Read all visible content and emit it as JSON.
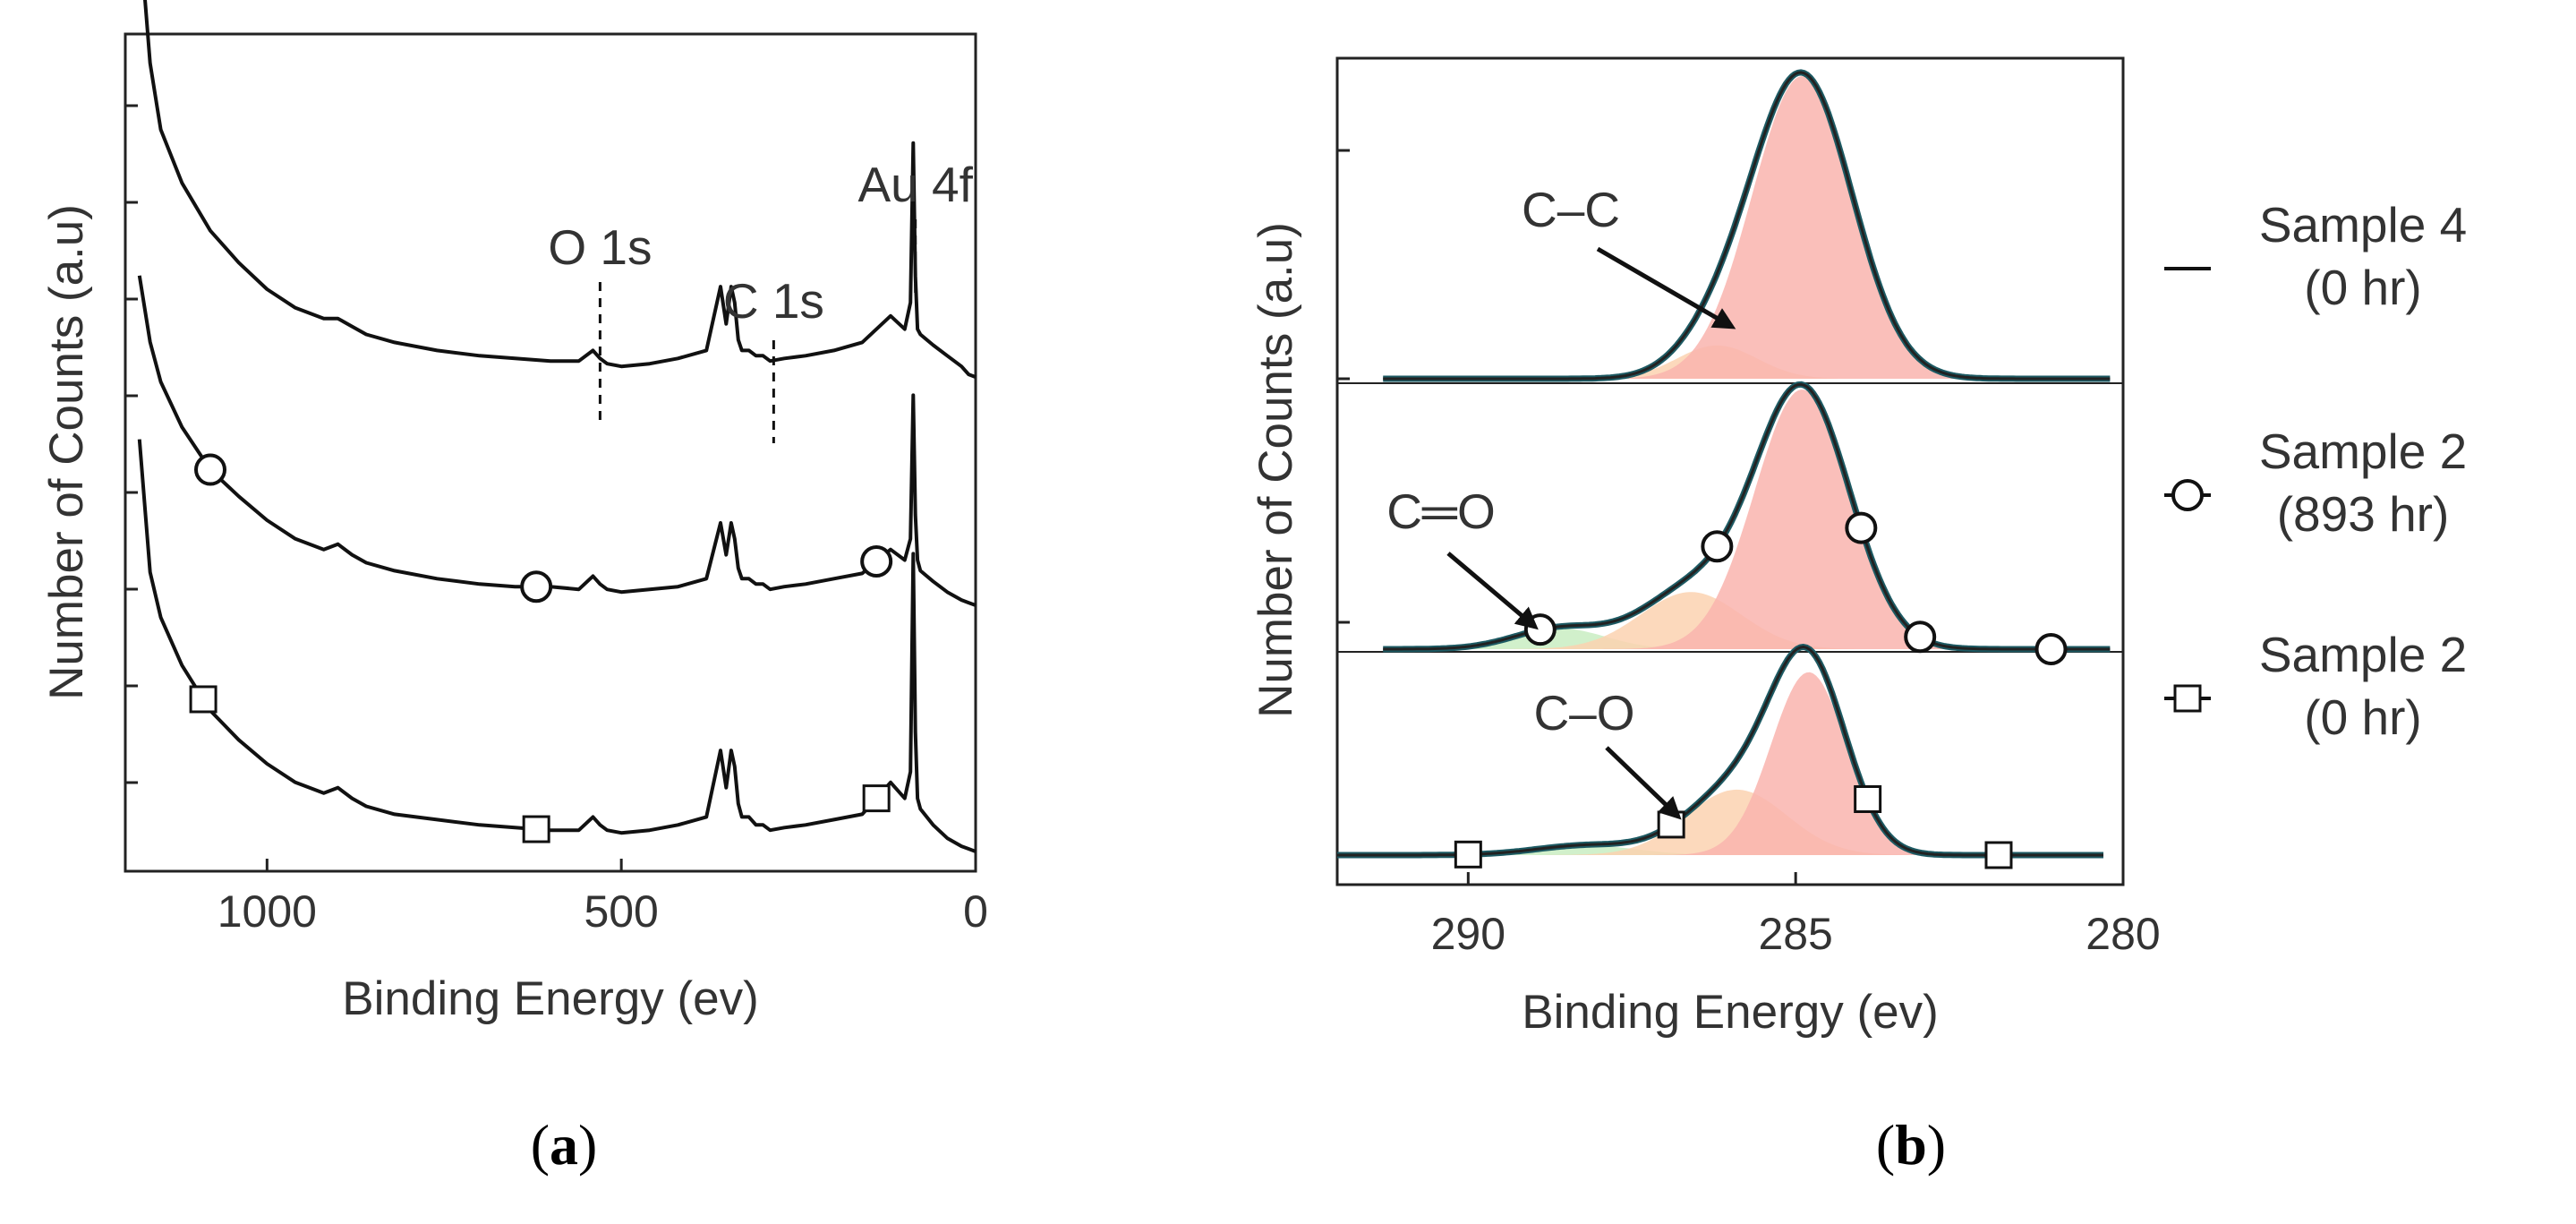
{
  "chart_data": [
    {
      "id": "a",
      "type": "line",
      "panel_label": "a",
      "xlabel": "Binding Energy (ev)",
      "ylabel": "Number of Counts (a.u)",
      "xlim": [
        1200,
        0
      ],
      "xticks": [
        {
          "value": 1000,
          "label": "1000"
        },
        {
          "value": 500,
          "label": "500"
        },
        {
          "value": 0,
          "label": "0"
        }
      ],
      "yticks": 8,
      "series": [
        {
          "name": "Sample 4 (0 hr)",
          "marker": "none",
          "offset": 2.0,
          "x": [
            1180,
            1165,
            1150,
            1120,
            1080,
            1040,
            1000,
            960,
            920,
            900,
            880,
            860,
            820,
            760,
            700,
            650,
            600,
            560,
            540,
            530,
            520,
            500,
            460,
            420,
            380,
            360,
            352,
            345,
            340,
            335,
            330,
            320,
            310,
            300,
            290,
            270,
            240,
            200,
            160,
            120,
            100,
            92,
            88,
            85,
            82,
            78,
            60,
            40,
            20,
            10,
            0
          ],
          "y": [
            1.7,
            1.2,
            0.95,
            0.75,
            0.57,
            0.45,
            0.35,
            0.28,
            0.24,
            0.24,
            0.21,
            0.18,
            0.15,
            0.12,
            0.1,
            0.09,
            0.08,
            0.08,
            0.12,
            0.09,
            0.07,
            0.06,
            0.07,
            0.09,
            0.12,
            0.36,
            0.22,
            0.36,
            0.3,
            0.16,
            0.12,
            0.12,
            0.1,
            0.1,
            0.08,
            0.09,
            0.1,
            0.12,
            0.15,
            0.25,
            0.2,
            0.3,
            0.9,
            0.4,
            0.2,
            0.18,
            0.14,
            0.1,
            0.06,
            0.03,
            0.02
          ]
        },
        {
          "name": "Sample 2 (893 hr)",
          "marker": "circle",
          "offset": 1.0,
          "x": [
            1180,
            1165,
            1150,
            1120,
            1080,
            1040,
            1000,
            960,
            920,
            900,
            880,
            860,
            820,
            760,
            700,
            650,
            600,
            560,
            540,
            530,
            520,
            500,
            460,
            420,
            380,
            360,
            352,
            345,
            340,
            335,
            330,
            320,
            310,
            300,
            290,
            270,
            240,
            200,
            160,
            120,
            100,
            92,
            88,
            85,
            82,
            78,
            60,
            40,
            20,
            10,
            0
          ],
          "y": [
            1.25,
            1.0,
            0.85,
            0.68,
            0.52,
            0.42,
            0.33,
            0.26,
            0.22,
            0.24,
            0.2,
            0.17,
            0.14,
            0.11,
            0.09,
            0.08,
            0.08,
            0.07,
            0.12,
            0.09,
            0.07,
            0.06,
            0.07,
            0.08,
            0.11,
            0.32,
            0.2,
            0.32,
            0.26,
            0.15,
            0.11,
            0.11,
            0.09,
            0.09,
            0.07,
            0.08,
            0.09,
            0.11,
            0.13,
            0.22,
            0.18,
            0.26,
            0.8,
            0.35,
            0.18,
            0.14,
            0.1,
            0.06,
            0.03,
            0.02,
            0.01
          ],
          "markers_x": [
            1080,
            620,
            140
          ]
        },
        {
          "name": "Sample 2 (0 hr)",
          "marker": "square",
          "offset": 0.0,
          "x": [
            1180,
            1165,
            1150,
            1120,
            1080,
            1040,
            1000,
            960,
            920,
            900,
            880,
            860,
            820,
            760,
            700,
            650,
            600,
            560,
            540,
            530,
            520,
            500,
            460,
            420,
            380,
            360,
            352,
            345,
            340,
            335,
            330,
            320,
            310,
            300,
            290,
            270,
            240,
            200,
            160,
            120,
            100,
            92,
            88,
            85,
            82,
            78,
            60,
            40,
            20,
            10,
            0
          ],
          "y": [
            1.55,
            1.05,
            0.88,
            0.7,
            0.53,
            0.42,
            0.33,
            0.26,
            0.22,
            0.24,
            0.2,
            0.17,
            0.14,
            0.12,
            0.1,
            0.09,
            0.08,
            0.08,
            0.13,
            0.1,
            0.08,
            0.07,
            0.08,
            0.1,
            0.13,
            0.38,
            0.24,
            0.38,
            0.32,
            0.18,
            0.13,
            0.13,
            0.1,
            0.1,
            0.08,
            0.09,
            0.1,
            0.12,
            0.14,
            0.26,
            0.2,
            0.3,
            1.12,
            0.45,
            0.2,
            0.16,
            0.1,
            0.05,
            0.02,
            0.01,
            0.0
          ],
          "markers_x": [
            1090,
            620,
            140
          ]
        }
      ],
      "annotations": [
        {
          "text": "O 1s",
          "x": 530
        },
        {
          "text": "C 1s",
          "x": 285
        },
        {
          "text": "Au 4f",
          "x": 85
        }
      ]
    },
    {
      "id": "b",
      "type": "line",
      "panel_label": "b",
      "xlabel": "Binding Energy (ev)",
      "ylabel": "Number of Counts (a.u)",
      "xlim": [
        292,
        280
      ],
      "xticks": [
        {
          "value": 290,
          "label": "290"
        },
        {
          "value": 285,
          "label": "285"
        },
        {
          "value": 280,
          "label": "280"
        }
      ],
      "series": [
        {
          "name": "Sample 4 (0 hr)",
          "marker": "none",
          "panel": "top",
          "components": [
            {
              "label": "C–C",
              "center": 284.9,
              "width": 1.0,
              "height": 1.0,
              "color": "#f9b4ae"
            },
            {
              "label": "C–O",
              "center": 286.2,
              "width": 0.8,
              "height": 0.11,
              "color": "#fbd2b0"
            }
          ]
        },
        {
          "name": "Sample 2 (893 hr)",
          "marker": "circle",
          "panel": "middle",
          "components": [
            {
              "label": "C–C",
              "center": 284.9,
              "width": 0.95,
              "height": 1.0,
              "color": "#f9b4ae"
            },
            {
              "label": "C–O",
              "center": 286.6,
              "width": 1.0,
              "height": 0.22,
              "color": "#fbd2b0"
            },
            {
              "label": "C=O",
              "center": 288.6,
              "width": 0.9,
              "height": 0.08,
              "color": "#c9edc2"
            }
          ],
          "markers_x": [
            288.9,
            286.2,
            284.0,
            283.1,
            281.1
          ]
        },
        {
          "name": "Sample 2 (0 hr)",
          "marker": "square",
          "panel": "bottom",
          "components": [
            {
              "label": "C–C",
              "center": 284.8,
              "width": 0.75,
              "height": 0.95,
              "color": "#f9b4ae"
            },
            {
              "label": "C–O",
              "center": 285.9,
              "width": 1.0,
              "height": 0.34,
              "color": "#fbd2b0"
            },
            {
              "label": "C=O",
              "center": 288.2,
              "width": 1.0,
              "height": 0.05,
              "color": "#c9edc2"
            }
          ],
          "markers_x": [
            290.0,
            286.9,
            283.9,
            281.9
          ]
        }
      ],
      "annotations": [
        {
          "text": "C–C",
          "panel": "top"
        },
        {
          "text": "C═O",
          "panel": "middle"
        },
        {
          "text": "C–O",
          "panel": "bottom"
        }
      ],
      "legend": {
        "placement": "right",
        "entries": [
          {
            "line1": "Sample 4",
            "line2": "(0 hr)",
            "marker": "none"
          },
          {
            "line1": "Sample 2",
            "line2": "(893 hr)",
            "marker": "circle"
          },
          {
            "line1": "Sample 2",
            "line2": "(0 hr)",
            "marker": "square"
          }
        ]
      }
    }
  ]
}
